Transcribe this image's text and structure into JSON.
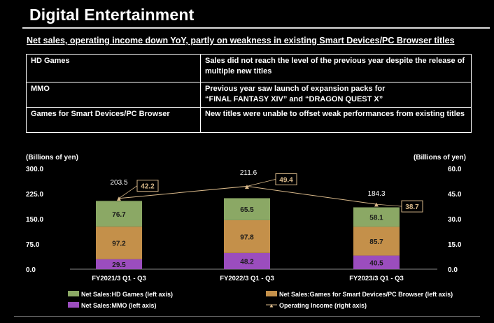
{
  "title": "Digital Entertainment",
  "headline": "Net sales, operating income down YoY, partly on weakness in existing Smart Devices/PC Browser titles",
  "table": {
    "rows": [
      {
        "segment": "HD Games",
        "comment": "Sales did not reach the level of the previous year despite the release of multiple new titles"
      },
      {
        "segment": "MMO",
        "comment_lines": [
          "Previous year saw launch of expansion packs for",
          "“FINAL FANTASY XIV” and “DRAGON QUEST X”"
        ]
      },
      {
        "segment": "Games for Smart Devices/PC Browser",
        "comment": "New titles were unable to offset weak performances from existing titles"
      }
    ]
  },
  "chart_data": {
    "type": "bar",
    "stacked": true,
    "left_unit": "(Billions of yen)",
    "right_unit": "(Billions of yen)",
    "left_ticks": [
      "300.0",
      "225.0",
      "150.0",
      "75.0",
      "0.0"
    ],
    "right_ticks": [
      "60.0",
      "45.0",
      "30.0",
      "15.0",
      "0.0"
    ],
    "ylim": [
      0,
      300
    ],
    "y2lim": [
      0,
      60
    ],
    "categories": [
      "FY2021/3 Q1 - Q3",
      "FY2022/3 Q1 - Q3",
      "FY2023/3 Q1 - Q3"
    ],
    "series": [
      {
        "name": "Net Sales:MMO (left axis)",
        "values": [
          29.5,
          48.2,
          40.5
        ],
        "labels": [
          "29.5",
          "48.2",
          "40.5"
        ],
        "color": "#9B4DBE"
      },
      {
        "name": "Net Sales:Games for Smart Devices/PC Browser (left axis)",
        "values": [
          97.2,
          97.8,
          85.7
        ],
        "labels": [
          "97.2",
          "97.8",
          "85.7"
        ],
        "color": "#C4904A"
      },
      {
        "name": "Net Sales:HD Games (left axis)",
        "values": [
          76.7,
          65.5,
          58.1
        ],
        "labels": [
          "76.7",
          "65.5",
          "58.1"
        ],
        "color": "#8BA865"
      }
    ],
    "totals": [
      203.5,
      211.6,
      184.3
    ],
    "total_labels": [
      "203.5",
      "211.6",
      "184.3"
    ],
    "line": {
      "name": "Operating Income (right axis)",
      "values": [
        42.2,
        49.4,
        38.7
      ],
      "labels": [
        "42.2",
        "49.4",
        "38.7"
      ],
      "color": "#D9B98A"
    },
    "legend": [
      {
        "label": "Net Sales:HD Games (left axis)",
        "color": "#8BA865",
        "kind": "box"
      },
      {
        "label": "Net Sales:Games for Smart Devices/PC Browser (left axis)",
        "color": "#C4904A",
        "kind": "box"
      },
      {
        "label": "Net Sales:MMO (left axis)",
        "color": "#9B4DBE",
        "kind": "box"
      },
      {
        "label": "Operating Income (right axis)",
        "color": "#D9B98A",
        "kind": "line"
      }
    ],
    "legend_placement": "bottom",
    "grid": false
  }
}
